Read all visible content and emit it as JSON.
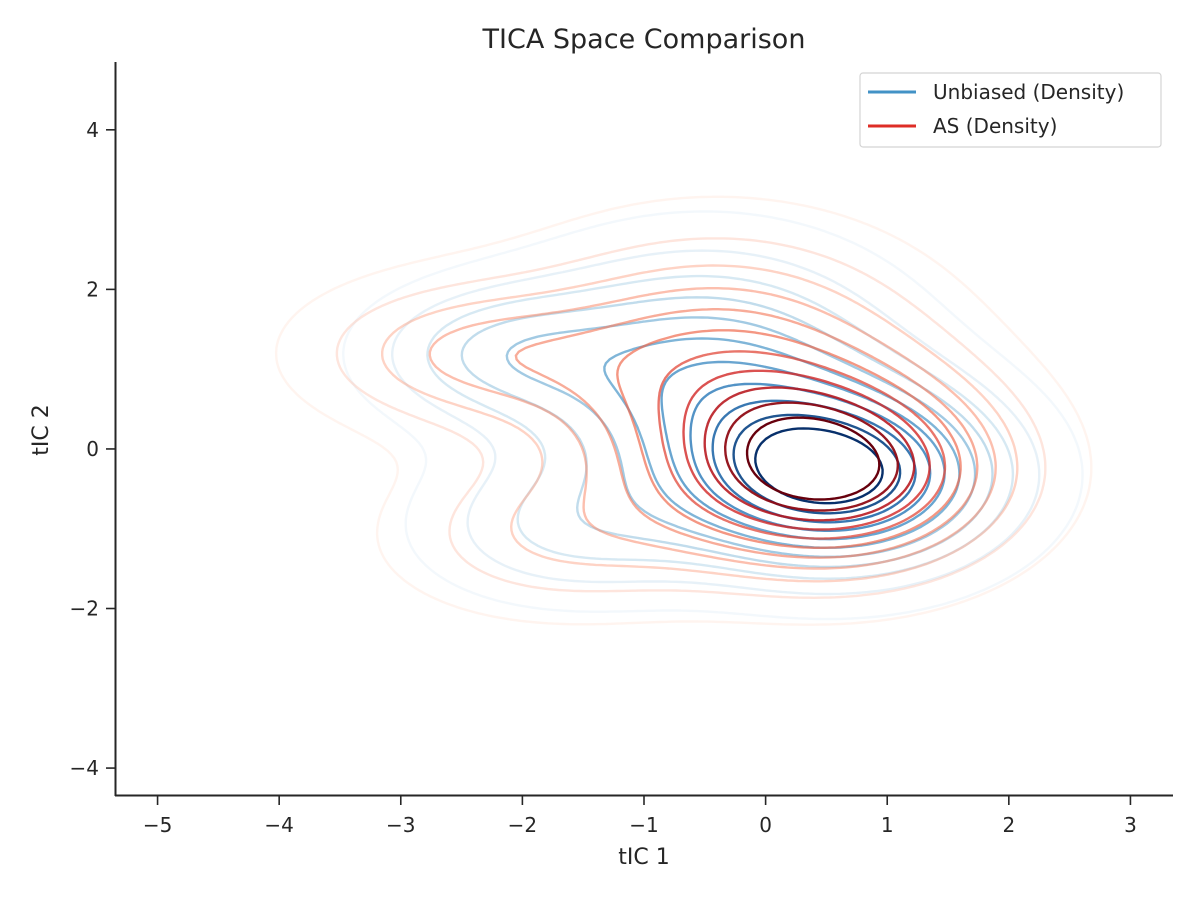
{
  "chart_data": {
    "type": "contour",
    "title": "TICA Space Comparison",
    "xlabel": "tIC 1",
    "ylabel": "tIC 2",
    "xlim": [
      -5.35,
      3.35
    ],
    "ylim": [
      -4.35,
      4.85
    ],
    "xticks": [
      -5,
      -4,
      -3,
      -2,
      -1,
      0,
      1,
      2,
      3
    ],
    "yticks": [
      -4,
      -2,
      0,
      2,
      4
    ],
    "xtick_labels": [
      "−5",
      "−4",
      "−3",
      "−2",
      "−1",
      "0",
      "1",
      "2",
      "3"
    ],
    "ytick_labels": [
      "−4",
      "−2",
      "0",
      "2",
      "4"
    ],
    "grid": false,
    "legend_position": "top-right",
    "series": [
      {
        "name": "Unbiased (Density)",
        "legend_color": "#4292c6",
        "colormap": "Blues",
        "components": [
          {
            "center": [
              0.6,
              -0.35
            ],
            "sigma": [
              0.85,
              0.75
            ],
            "weight": 1.0
          },
          {
            "center": [
              -0.5,
              0.9
            ],
            "sigma": [
              1.0,
              1.0
            ],
            "weight": 0.55
          },
          {
            "center": [
              -2.2,
              1.2
            ],
            "sigma": [
              0.7,
              0.55
            ],
            "weight": 0.3
          },
          {
            "center": [
              -1.6,
              -1.0
            ],
            "sigma": [
              0.8,
              0.6
            ],
            "weight": 0.25
          }
        ]
      },
      {
        "name": "AS (Density)",
        "legend_color": "#de2d26",
        "colormap": "Reds",
        "components": [
          {
            "center": [
              0.55,
              -0.3
            ],
            "sigma": [
              0.9,
              0.8
            ],
            "weight": 1.0
          },
          {
            "center": [
              -0.4,
              1.0
            ],
            "sigma": [
              1.1,
              1.05
            ],
            "weight": 0.55
          },
          {
            "center": [
              -2.5,
              1.2
            ],
            "sigma": [
              0.85,
              0.6
            ],
            "weight": 0.32
          },
          {
            "center": [
              -1.7,
              -1.1
            ],
            "sigma": [
              0.9,
              0.65
            ],
            "weight": 0.25
          }
        ]
      }
    ]
  }
}
